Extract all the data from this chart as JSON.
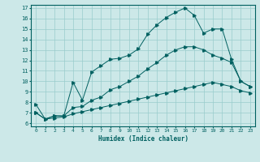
{
  "title": "",
  "xlabel": "Humidex (Indice chaleur)",
  "bg_color": "#cce8e8",
  "grid_color": "#99cccc",
  "line_color": "#006060",
  "xlim": [
    -0.5,
    23.5
  ],
  "ylim": [
    5.7,
    17.3
  ],
  "xticks": [
    0,
    1,
    2,
    3,
    4,
    5,
    6,
    7,
    8,
    9,
    10,
    11,
    12,
    13,
    14,
    15,
    16,
    17,
    18,
    19,
    20,
    21,
    22,
    23
  ],
  "yticks": [
    6,
    7,
    8,
    9,
    10,
    11,
    12,
    13,
    14,
    15,
    16,
    17
  ],
  "y_top": [
    7.8,
    6.4,
    6.7,
    6.7,
    9.9,
    8.2,
    10.9,
    11.5,
    12.1,
    12.2,
    12.5,
    13.1,
    14.5,
    15.4,
    16.1,
    16.6,
    17.0,
    16.3,
    14.6,
    15.0,
    15.0,
    12.1,
    10.0,
    9.5
  ],
  "y_mid": [
    7.0,
    6.4,
    6.7,
    6.7,
    7.5,
    7.6,
    8.2,
    8.5,
    9.2,
    9.5,
    10.0,
    10.5,
    11.2,
    11.8,
    12.5,
    13.0,
    13.3,
    13.3,
    13.0,
    12.5,
    12.2,
    11.8,
    10.0,
    9.5
  ],
  "y_bot": [
    7.0,
    6.4,
    6.5,
    6.6,
    6.9,
    7.1,
    7.3,
    7.5,
    7.7,
    7.9,
    8.1,
    8.3,
    8.5,
    8.7,
    8.9,
    9.1,
    9.3,
    9.5,
    9.7,
    9.9,
    9.7,
    9.5,
    9.1,
    8.9
  ],
  "tick_fontsize": 4.5,
  "xlabel_fontsize": 5.5
}
